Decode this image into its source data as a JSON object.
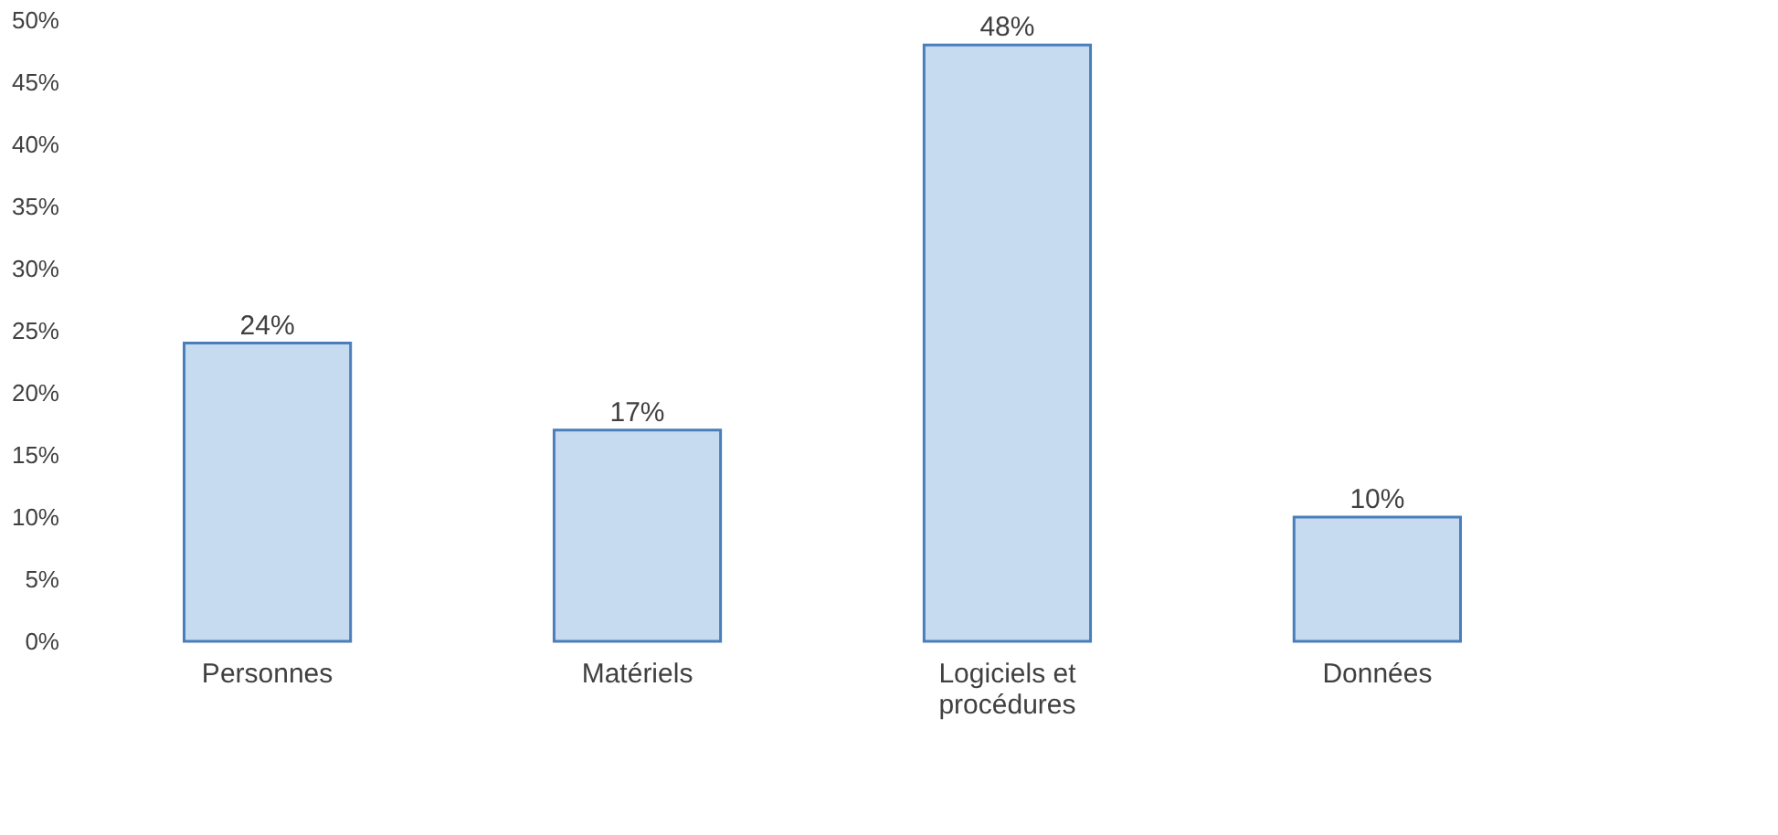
{
  "chart_data": {
    "type": "bar",
    "categories": [
      "Personnes",
      "Matériels",
      "Logiciels et procédures",
      "Données"
    ],
    "values": [
      24,
      17,
      48,
      10
    ],
    "value_labels": [
      "24%",
      "17%",
      "48%",
      "10%"
    ],
    "color": "#c6dbf0",
    "ylim": [
      0,
      50
    ],
    "yticks": [
      {
        "value": 0,
        "label": "0%"
      },
      {
        "value": 5,
        "label": "5%"
      },
      {
        "value": 10,
        "label": "10%"
      },
      {
        "value": 15,
        "label": "15%"
      },
      {
        "value": 20,
        "label": "20%"
      },
      {
        "value": 25,
        "label": "25%"
      },
      {
        "value": 30,
        "label": "30%"
      },
      {
        "value": 35,
        "label": "35%"
      },
      {
        "value": 40,
        "label": "40%"
      },
      {
        "value": 45,
        "label": "45%"
      },
      {
        "value": 50,
        "label": "50%"
      }
    ],
    "grid": false
  }
}
